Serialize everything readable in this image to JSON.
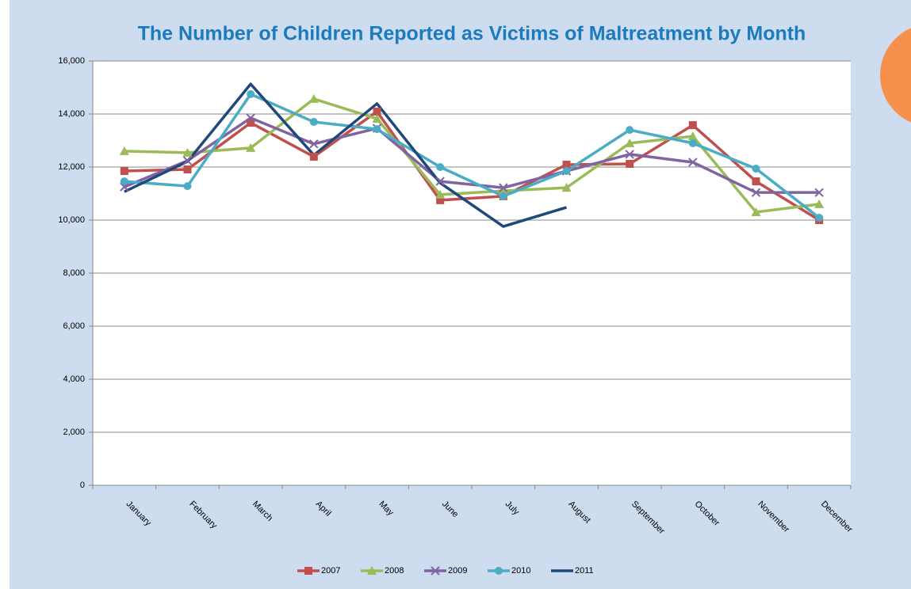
{
  "chart_data": {
    "type": "line",
    "title": "The Number of Children Reported as Victims of Maltreatment by Month",
    "categories": [
      "January",
      "February",
      "March",
      "April",
      "May",
      "June",
      "July",
      "August",
      "September",
      "October",
      "November",
      "December"
    ],
    "series": [
      {
        "name": "2007",
        "color": "#c0504d",
        "marker": "square",
        "values": [
          11850,
          11910,
          13670,
          12390,
          14090,
          10750,
          10900,
          12090,
          12120,
          13580,
          11460,
          10000
        ]
      },
      {
        "name": "2008",
        "color": "#9bbb59",
        "marker": "triangle",
        "values": [
          12600,
          12540,
          12720,
          14570,
          13820,
          10960,
          11100,
          11220,
          12900,
          13160,
          10300,
          10600
        ]
      },
      {
        "name": "2009",
        "color": "#8064a2",
        "marker": "x",
        "values": [
          11250,
          12240,
          13850,
          12870,
          13460,
          11460,
          11220,
          11850,
          12480,
          12180,
          11040,
          11040
        ]
      },
      {
        "name": "2010",
        "color": "#4bacc6",
        "marker": "circle",
        "values": [
          11460,
          11280,
          14750,
          13700,
          13430,
          12000,
          10900,
          11850,
          13400,
          12900,
          11940,
          10090
        ]
      },
      {
        "name": "2011",
        "color": "#1f497d",
        "marker": "none",
        "values": [
          11070,
          12210,
          15130,
          12450,
          14390,
          11400,
          9760,
          10480,
          null,
          null,
          null,
          null
        ]
      }
    ],
    "ylim": [
      0,
      16000
    ],
    "yticks": [
      0,
      {
        "value": 2000,
        "label": "2,000"
      },
      {
        "value": 4000,
        "label": "4,000"
      },
      {
        "value": 6000,
        "label": "6,000"
      },
      {
        "value": 8000,
        "label": "8,000"
      },
      {
        "value": 10000,
        "label": "10,000"
      },
      {
        "value": 12000,
        "label": "12,000"
      },
      {
        "value": 14000,
        "label": "14,000"
      },
      {
        "value": 16000,
        "label": "16,000"
      }
    ],
    "grid": true,
    "legend": "bottom"
  }
}
